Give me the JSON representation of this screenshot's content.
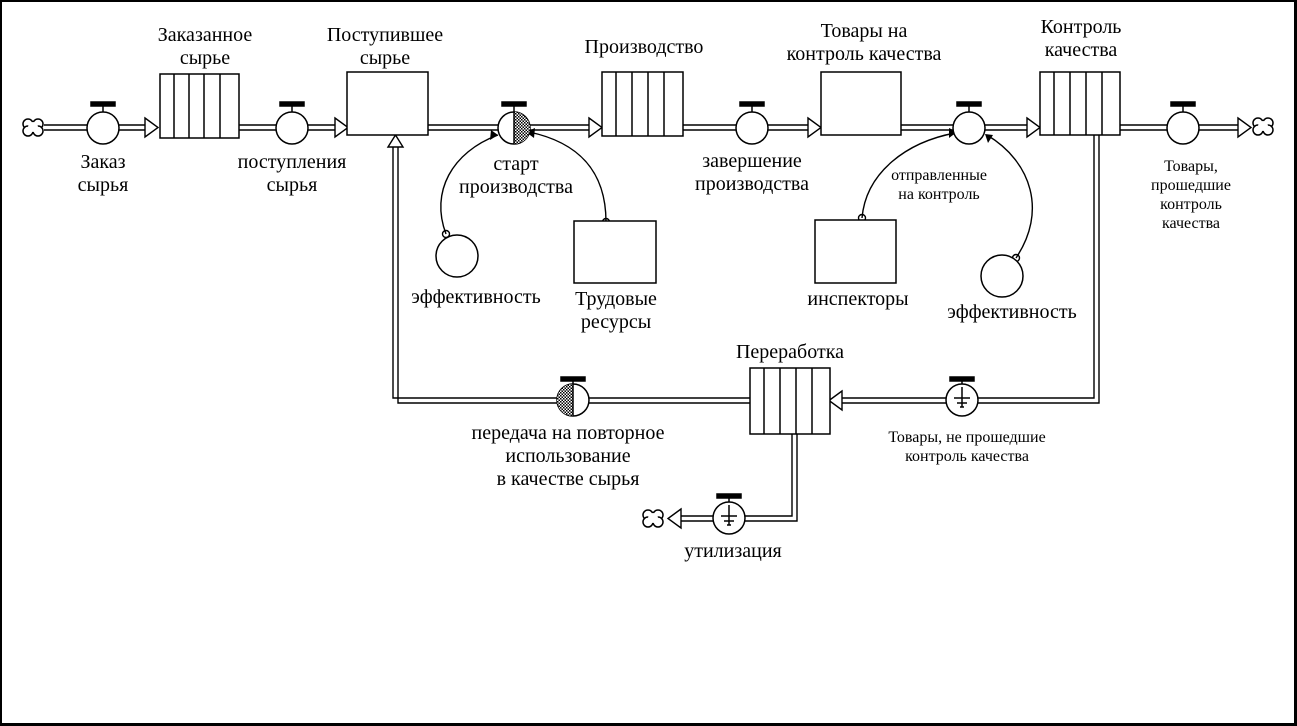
{
  "colors": {
    "line": "#000000",
    "fill": "#ffffff"
  },
  "stocks": {
    "ordered_raw": "Заказанное\nсырье",
    "received_raw": "Поступившее\nсырье",
    "production": "Производство",
    "goods_for_qc": "Товары на\nконтроль качества",
    "quality_control": "Контроль\nкачества",
    "rework": "Переработка",
    "labor": "Трудовые\nресурсы",
    "inspectors": "инспекторы"
  },
  "flows": {
    "order_raw": "Заказ\nсырья",
    "raw_arrivals": "поступления\nсырья",
    "production_start": "старт\nпроизводства",
    "production_finish": "завершение\nпроизводства",
    "sent_to_qc": "отправленные\nна контроль",
    "passed_qc": "Товары, прошедшие\nконтроль качества",
    "failed_qc": "Товары, не прошедшие\nконтроль качества",
    "reuse_as_raw": "передача на повторное\nиспользование\nв качестве сырья",
    "disposal": "утилизация"
  },
  "converters": {
    "efficiency_production": "эффективность",
    "efficiency_qc": "эффективность"
  }
}
